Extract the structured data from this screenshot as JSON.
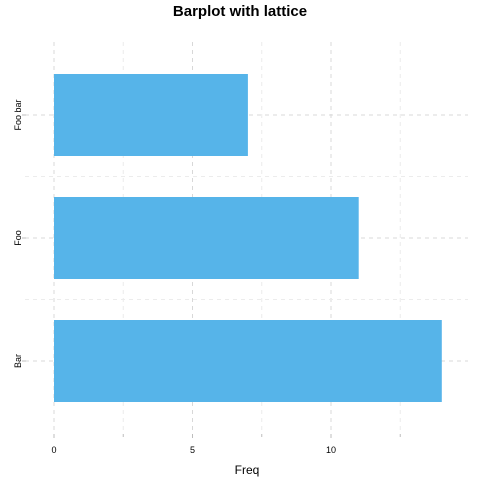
{
  "chart_data": {
    "type": "bar",
    "orientation": "horizontal",
    "title": "Barplot with lattice",
    "xlabel": "Freq",
    "ylabel": "",
    "categories": [
      "Bar",
      "Foo",
      "Foo bar"
    ],
    "values": [
      14,
      11,
      7
    ],
    "xlim": [
      0,
      15
    ],
    "x_ticks": [
      0,
      5,
      10
    ],
    "grid": true,
    "bar_color": "#56B4E9"
  }
}
